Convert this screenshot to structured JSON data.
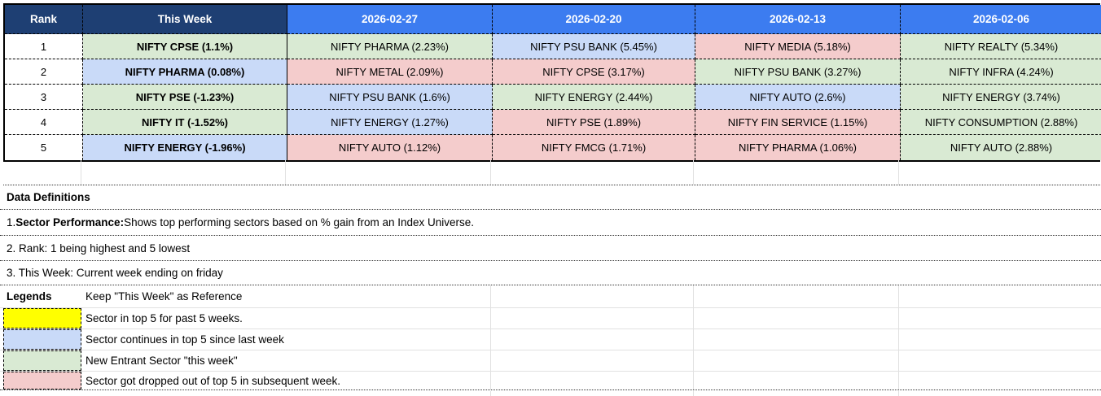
{
  "colors": {
    "header_navy": "#1e3f73",
    "header_blue": "#3c7cf0",
    "green": "#d9ead3",
    "blue": "#c9daf8",
    "pink": "#f4cccc",
    "yellow": "#ffff00",
    "white": "#ffffff"
  },
  "header": {
    "columns": [
      "Rank",
      "This Week",
      "2026-02-27",
      "2026-02-20",
      "2026-02-13",
      "2026-02-06"
    ]
  },
  "table": {
    "rows": [
      {
        "rank": "1",
        "cells": [
          {
            "text": "NIFTY CPSE (1.1%)",
            "color": "green"
          },
          {
            "text": "NIFTY PHARMA (2.23%)",
            "color": "green"
          },
          {
            "text": "NIFTY PSU BANK (5.45%)",
            "color": "blue"
          },
          {
            "text": "NIFTY MEDIA (5.18%)",
            "color": "pink"
          },
          {
            "text": "NIFTY REALTY (5.34%)",
            "color": "green"
          }
        ]
      },
      {
        "rank": "2",
        "cells": [
          {
            "text": "NIFTY PHARMA (0.08%)",
            "color": "blue"
          },
          {
            "text": "NIFTY METAL (2.09%)",
            "color": "pink"
          },
          {
            "text": "NIFTY CPSE (3.17%)",
            "color": "pink"
          },
          {
            "text": "NIFTY PSU BANK (3.27%)",
            "color": "green"
          },
          {
            "text": "NIFTY INFRA (4.24%)",
            "color": "green"
          }
        ]
      },
      {
        "rank": "3",
        "cells": [
          {
            "text": "NIFTY PSE (-1.23%)",
            "color": "green"
          },
          {
            "text": "NIFTY PSU BANK (1.6%)",
            "color": "blue"
          },
          {
            "text": "NIFTY ENERGY (2.44%)",
            "color": "green"
          },
          {
            "text": "NIFTY AUTO (2.6%)",
            "color": "blue"
          },
          {
            "text": "NIFTY ENERGY (3.74%)",
            "color": "green"
          }
        ]
      },
      {
        "rank": "4",
        "cells": [
          {
            "text": "NIFTY IT (-1.52%)",
            "color": "green"
          },
          {
            "text": "NIFTY ENERGY (1.27%)",
            "color": "blue"
          },
          {
            "text": "NIFTY PSE (1.89%)",
            "color": "pink"
          },
          {
            "text": "NIFTY FIN SERVICE (1.15%)",
            "color": "pink"
          },
          {
            "text": "NIFTY CONSUMPTION (2.88%)",
            "color": "green"
          }
        ]
      },
      {
        "rank": "5",
        "cells": [
          {
            "text": "NIFTY ENERGY (-1.96%)",
            "color": "blue"
          },
          {
            "text": "NIFTY AUTO (1.12%)",
            "color": "pink"
          },
          {
            "text": "NIFTY FMCG (1.71%)",
            "color": "pink"
          },
          {
            "text": "NIFTY PHARMA (1.06%)",
            "color": "pink"
          },
          {
            "text": "NIFTY AUTO (2.88%)",
            "color": "green"
          }
        ]
      }
    ]
  },
  "notes": {
    "title": "Data Definitions",
    "item1_prefix": "1. ",
    "item1_bold": "Sector Performance:",
    "item1_rest": " Shows top performing sectors based on % gain from an Index Universe.",
    "item2": "2. Rank: 1 being highest and 5 lowest",
    "item3": "3. This Week: Current week ending on friday"
  },
  "legends": {
    "title": "Legends",
    "reference": "Keep \"This Week\" as Reference",
    "items": [
      {
        "color": "yellow",
        "label": "Sector in top 5 for past 5 weeks."
      },
      {
        "color": "blue",
        "label": "Sector continues in top 5 since last week"
      },
      {
        "color": "green",
        "label": "New Entrant Sector \"this week\""
      },
      {
        "color": "pink",
        "label": "Sector got dropped out of top 5 in subsequent week."
      }
    ]
  }
}
